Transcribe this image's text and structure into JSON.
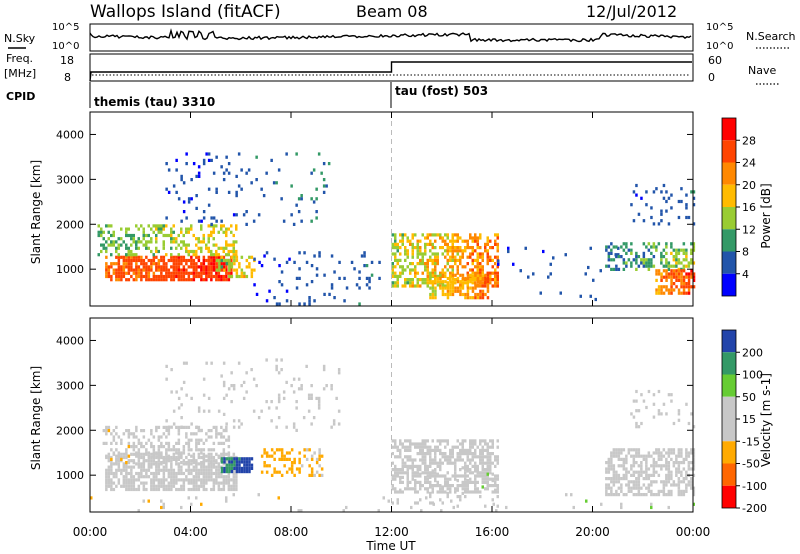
{
  "header": {
    "title": "Wallops Island (fitACF)",
    "beam": "Beam 08",
    "date": "12/Jul/2012"
  },
  "top_panel": {
    "nsky_label": "N.Sky",
    "nsearch_label": "N.Search",
    "freq_label": "Freq.",
    "freq_unit": "[MHz]",
    "nave_label": "Nave",
    "cpid_label": "CPID",
    "nsky_ticks": [
      "10^5",
      "10^0"
    ],
    "nsearch_ticks": [
      "10^5",
      "10^0"
    ],
    "freq_ticks": [
      "18",
      "8"
    ],
    "nave_ticks": [
      "60",
      "0"
    ],
    "cpid_segments": [
      {
        "label": "themis (tau) 3310",
        "start_hour": 0
      },
      {
        "label": "tau (fost) 503",
        "start_hour": 12
      }
    ]
  },
  "chart_data": [
    {
      "type": "heatmap",
      "name": "power",
      "ylabel": "Slant Range [km]",
      "ylim": [
        180,
        4500
      ],
      "yticks": [
        1000,
        2000,
        3000,
        4000
      ],
      "colorbar": {
        "label": "Power [dB]",
        "ticks": [
          "28",
          "24",
          "20",
          "16",
          "12",
          "8",
          "4"
        ],
        "colors": [
          "#ff0000",
          "#ff4400",
          "#ff8800",
          "#ffbb00",
          "#99cc33",
          "#339966",
          "#2255aa",
          "#0000ff"
        ],
        "range": [
          0,
          32
        ]
      },
      "regions": [
        {
          "t0": 0.6,
          "t1": 5.6,
          "r0": 800,
          "r1": 1300,
          "p0": 22,
          "p1": 30,
          "d": 0.75
        },
        {
          "t0": 0.3,
          "t1": 5.8,
          "r0": 1300,
          "r1": 2000,
          "p0": 8,
          "p1": 20,
          "d": 0.45
        },
        {
          "t0": 3.0,
          "t1": 9.5,
          "r0": 2000,
          "r1": 3600,
          "p0": 2,
          "p1": 10,
          "d": 0.08
        },
        {
          "t0": 5.0,
          "t1": 6.5,
          "r0": 850,
          "r1": 1300,
          "p0": 10,
          "p1": 22,
          "d": 0.5
        },
        {
          "t0": 6.5,
          "t1": 11.5,
          "r0": 200,
          "r1": 1400,
          "p0": 2,
          "p1": 9,
          "d": 0.07
        },
        {
          "t0": 12.0,
          "t1": 16.2,
          "r0": 600,
          "r1": 1800,
          "p0": 10,
          "p1": 28,
          "d": 0.55
        },
        {
          "t0": 13.5,
          "t1": 15.8,
          "r0": 400,
          "r1": 900,
          "p0": 14,
          "p1": 26,
          "d": 0.6
        },
        {
          "t0": 16.0,
          "t1": 21.0,
          "r0": 200,
          "r1": 1500,
          "p0": 2,
          "p1": 8,
          "d": 0.03
        },
        {
          "t0": 20.5,
          "t1": 24.0,
          "r0": 1000,
          "r1": 1600,
          "p0": 4,
          "p1": 18,
          "d": 0.4
        },
        {
          "t0": 22.5,
          "t1": 24.0,
          "r0": 500,
          "r1": 1000,
          "p0": 18,
          "p1": 30,
          "d": 0.7
        },
        {
          "t0": 21.5,
          "t1": 24.0,
          "r0": 2000,
          "r1": 2900,
          "p0": 2,
          "p1": 10,
          "d": 0.1
        }
      ]
    },
    {
      "type": "heatmap",
      "name": "velocity",
      "ylabel": "Slant Range [km]",
      "ylim": [
        180,
        4500
      ],
      "yticks": [
        1000,
        2000,
        3000,
        4000
      ],
      "colorbar": {
        "label": "Velocity [m s-1]",
        "ticks": [
          "200",
          "100",
          "50",
          "15",
          "-15",
          "-50",
          "-100",
          "-200"
        ],
        "colors": [
          "#2244aa",
          "#339966",
          "#66cc33",
          "#c8c8c8",
          "#c8c8c8",
          "#ffaa00",
          "#ff6600",
          "#ff0000"
        ],
        "range": [
          -250,
          250
        ]
      },
      "regions": [
        {
          "t0": 0.6,
          "t1": 5.8,
          "r0": 700,
          "r1": 1500,
          "v0": -10,
          "v1": 10,
          "d": 0.7
        },
        {
          "t0": 0.5,
          "t1": 5.5,
          "r0": 1300,
          "r1": 2100,
          "v0": -80,
          "v1": 60,
          "d": 0.35
        },
        {
          "t0": 5.2,
          "t1": 6.4,
          "r0": 1100,
          "r1": 1400,
          "v0": 160,
          "v1": 240,
          "d": 0.85
        },
        {
          "t0": 6.8,
          "t1": 9.2,
          "r0": 1000,
          "r1": 1600,
          "v0": -120,
          "v1": -40,
          "d": 0.35
        },
        {
          "t0": 3.0,
          "t1": 10.0,
          "r0": 2000,
          "r1": 3600,
          "v0": -60,
          "v1": 60,
          "d": 0.07
        },
        {
          "t0": 12.0,
          "t1": 16.2,
          "r0": 600,
          "r1": 1800,
          "v0": -10,
          "v1": 10,
          "d": 0.6
        },
        {
          "t0": 12.0,
          "t1": 16.2,
          "r0": 300,
          "r1": 1200,
          "v0": -60,
          "v1": 80,
          "d": 0.12
        },
        {
          "t0": 20.5,
          "t1": 24.0,
          "r0": 600,
          "r1": 1600,
          "v0": -10,
          "v1": 10,
          "d": 0.55
        },
        {
          "t0": 21.5,
          "t1": 24.0,
          "r0": 2000,
          "r1": 2900,
          "v0": -10,
          "v1": 10,
          "d": 0.1
        },
        {
          "t0": 0.0,
          "t1": 24.0,
          "r0": 200,
          "r1": 600,
          "v0": -100,
          "v1": 100,
          "d": 0.03
        }
      ]
    }
  ],
  "x_axis": {
    "label": "Time UT",
    "ticks": [
      "00:00",
      "04:00",
      "08:00",
      "12:00",
      "16:00",
      "20:00",
      "00:00"
    ],
    "range_hours": [
      0,
      24
    ],
    "marker_hour": 12
  }
}
